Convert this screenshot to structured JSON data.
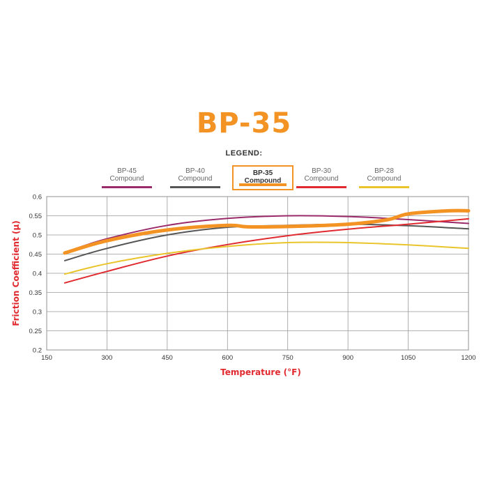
{
  "title": "BP-35",
  "legend_heading": "LEGEND:",
  "legend": [
    {
      "line1": "BP-45",
      "line2": "Compound",
      "color": "#9b2a6b",
      "active": false
    },
    {
      "line1": "BP-40",
      "line2": "Compound",
      "color": "#555555",
      "active": false
    },
    {
      "line1": "BP-35",
      "line2": "Compound",
      "color": "#f39324",
      "active": true
    },
    {
      "line1": "BP-30",
      "line2": "Compound",
      "color": "#e02a2f",
      "active": false
    },
    {
      "line1": "BP-28",
      "line2": "Compound",
      "color": "#e9c42a",
      "active": false
    }
  ],
  "chart_data": {
    "type": "line",
    "xlabel": "Temperature (°F)",
    "ylabel": "Friction Coefficient (µ)",
    "xlim": [
      150,
      1200
    ],
    "ylim": [
      0.2,
      0.6
    ],
    "xticks": [
      "150",
      "300",
      "450",
      "600",
      "750",
      "900",
      "1050",
      "1200"
    ],
    "yticks": [
      "0.2",
      "0.25",
      "0.3",
      "0.35",
      "0.4",
      "0.45",
      "0.5",
      "0.55",
      "0.6"
    ],
    "grid": true,
    "series": [
      {
        "name": "BP-45 Compound",
        "color": "#9b2a6b",
        "x": [
          195,
          300,
          450,
          600,
          750,
          900,
          1050,
          1200
        ],
        "y": [
          0.455,
          0.49,
          0.525,
          0.543,
          0.55,
          0.548,
          0.54,
          0.53
        ]
      },
      {
        "name": "BP-40 Compound",
        "color": "#555555",
        "x": [
          195,
          300,
          450,
          600,
          750,
          900,
          1050,
          1200
        ],
        "y": [
          0.433,
          0.465,
          0.5,
          0.52,
          0.525,
          0.528,
          0.524,
          0.516
        ]
      },
      {
        "name": "BP-35 Compound",
        "color": "#f39324",
        "x": [
          195,
          300,
          450,
          600,
          650,
          750,
          900,
          1000,
          1050,
          1150,
          1200
        ],
        "y": [
          0.453,
          0.485,
          0.513,
          0.525,
          0.521,
          0.522,
          0.528,
          0.54,
          0.555,
          0.563,
          0.563
        ]
      },
      {
        "name": "BP-30 Compound",
        "color": "#e02a2f",
        "x": [
          195,
          300,
          450,
          600,
          750,
          900,
          1050,
          1200
        ],
        "y": [
          0.375,
          0.405,
          0.445,
          0.475,
          0.498,
          0.515,
          0.528,
          0.542
        ]
      },
      {
        "name": "BP-28 Compound",
        "color": "#e9c42a",
        "x": [
          195,
          300,
          450,
          600,
          750,
          900,
          1050,
          1200
        ],
        "y": [
          0.398,
          0.425,
          0.452,
          0.47,
          0.48,
          0.48,
          0.474,
          0.465
        ]
      }
    ]
  }
}
